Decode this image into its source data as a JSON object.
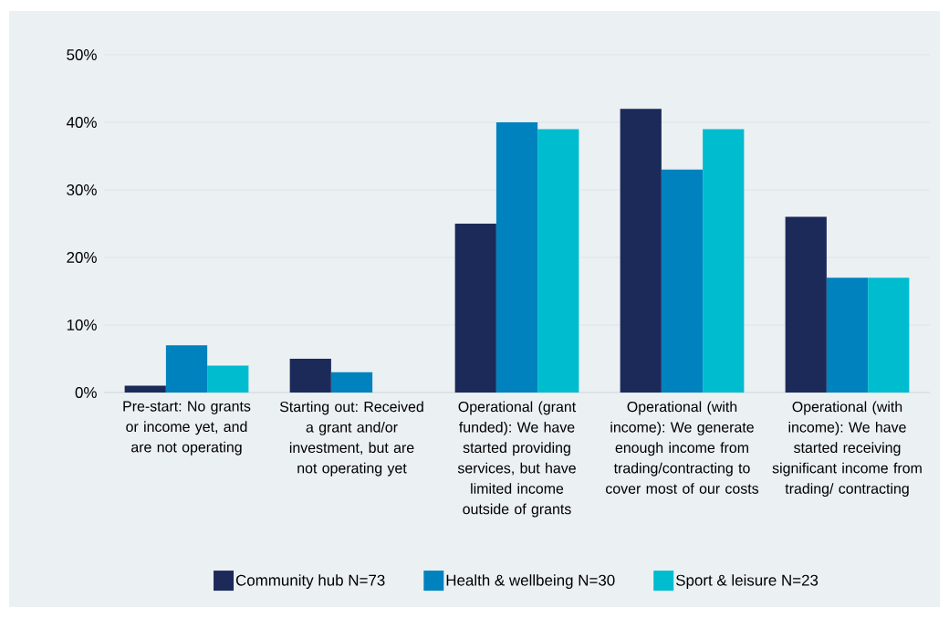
{
  "chart_data": {
    "type": "bar",
    "categories": [
      "Pre-start: No grants or income yet, and are not operating",
      "Starting out: Received a grant and/or investment, but are not operating yet",
      "Operational (grant funded): We have started providing services, but have limited income outside of grants",
      "Operational (with income): We generate enough income from trading/contracting to cover most of our costs",
      "Operational (with income): We have started receiving significant income from trading/ contracting"
    ],
    "series": [
      {
        "name": "Community hub N=73",
        "color": "#1c2a5a",
        "values": [
          1,
          5,
          25,
          42,
          26
        ]
      },
      {
        "name": "Health & wellbeing N=30",
        "color": "#0082be",
        "values": [
          7,
          3,
          40,
          33,
          17
        ]
      },
      {
        "name": "Sport & leisure N=23",
        "color": "#00bccf",
        "values": [
          4,
          null,
          39,
          39,
          17
        ]
      }
    ],
    "ylim": [
      0,
      50
    ],
    "yticks": [
      {
        "value": 0,
        "label": "0%"
      },
      {
        "value": 10,
        "label": "10%"
      },
      {
        "value": 20,
        "label": "20%"
      },
      {
        "value": 30,
        "label": "30%"
      },
      {
        "value": 40,
        "label": "40%"
      },
      {
        "value": 50,
        "label": "50%"
      }
    ],
    "grid": "y",
    "legend": "bottom"
  }
}
